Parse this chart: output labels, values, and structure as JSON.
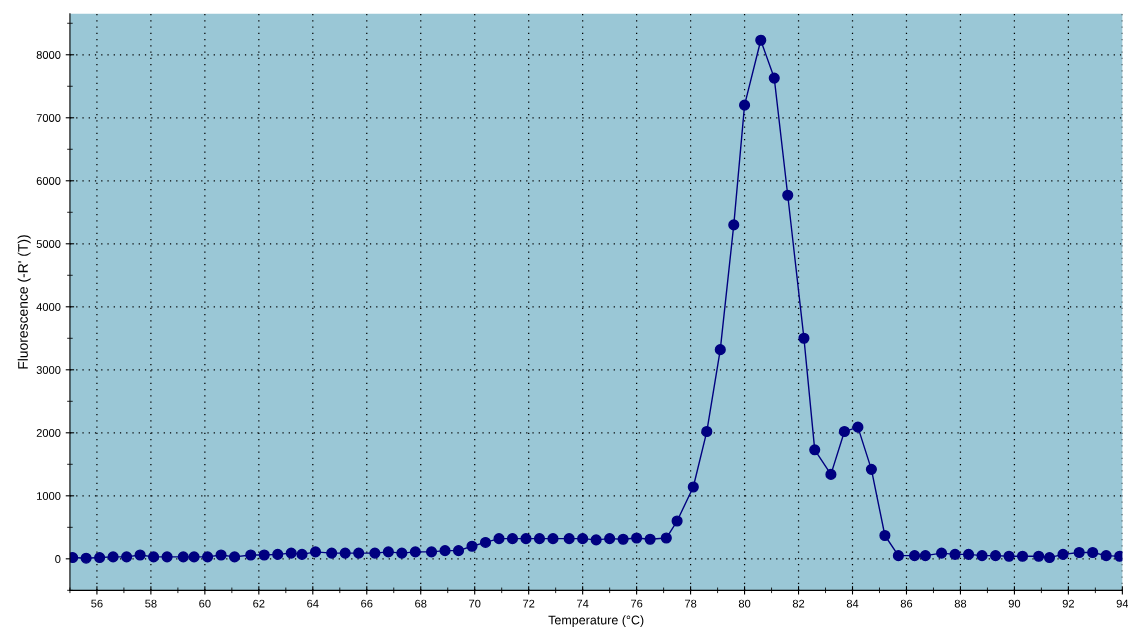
{
  "chart_data": {
    "type": "line",
    "xlabel": "Temperature (°C)",
    "ylabel": "Fluorescence (-R' (T))",
    "x": [
      55.1,
      55.6,
      56.1,
      56.6,
      57.1,
      57.6,
      58.1,
      58.6,
      59.2,
      59.6,
      60.1,
      60.6,
      61.1,
      61.7,
      62.2,
      62.7,
      63.2,
      63.6,
      64.1,
      64.7,
      65.2,
      65.7,
      66.3,
      66.8,
      67.3,
      67.8,
      68.4,
      68.9,
      69.4,
      69.9,
      70.4,
      70.9,
      71.4,
      71.9,
      72.4,
      72.9,
      73.5,
      74.0,
      74.5,
      75.0,
      75.5,
      76.0,
      76.5,
      77.1,
      77.5,
      78.1,
      78.6,
      79.1,
      79.6,
      80.0,
      80.6,
      81.1,
      81.6,
      82.2,
      82.6,
      83.2,
      83.7,
      84.2,
      84.7,
      85.2,
      85.7,
      86.3,
      86.7,
      87.3,
      87.8,
      88.3,
      88.8,
      89.3,
      89.8,
      90.3,
      90.9,
      91.3,
      91.8,
      92.4,
      92.9,
      93.4,
      93.9
    ],
    "series": [
      {
        "color": "#000080",
        "values": [
          20,
          10,
          20,
          30,
          30,
          60,
          30,
          30,
          30,
          30,
          30,
          60,
          30,
          60,
          60,
          70,
          90,
          70,
          110,
          90,
          90,
          90,
          90,
          110,
          90,
          110,
          110,
          130,
          130,
          200,
          260,
          320,
          320,
          320,
          320,
          320,
          320,
          320,
          300,
          320,
          310,
          330,
          310,
          330,
          600,
          1140,
          2020,
          3320,
          5300,
          7200,
          8230,
          7630,
          5770,
          3500,
          1730,
          1340,
          2020,
          2090,
          1420,
          370,
          50,
          50,
          50,
          90,
          70,
          70,
          50,
          50,
          40,
          40,
          40,
          20,
          70,
          100,
          100,
          50,
          40
        ]
      }
    ],
    "xlim": [
      55,
      94
    ],
    "xticks": [
      56,
      58,
      60,
      62,
      64,
      66,
      68,
      70,
      72,
      74,
      76,
      78,
      80,
      82,
      84,
      86,
      88,
      90,
      92,
      94,
      {
        "value": 55,
        "label": null
      },
      {
        "value": 57,
        "label": null
      },
      {
        "value": 59,
        "label": null
      },
      {
        "value": 61,
        "label": null
      },
      {
        "value": 63,
        "label": null
      },
      {
        "value": 65,
        "label": null
      },
      {
        "value": 67,
        "label": null
      },
      {
        "value": 69,
        "label": null
      },
      {
        "value": 71,
        "label": null
      },
      {
        "value": 73,
        "label": null
      },
      {
        "value": 75,
        "label": null
      },
      {
        "value": 77,
        "label": null
      },
      {
        "value": 79,
        "label": null
      },
      {
        "value": 81,
        "label": null
      },
      {
        "value": 83,
        "label": null
      },
      {
        "value": 85,
        "label": null
      },
      {
        "value": 87,
        "label": null
      },
      {
        "value": 89,
        "label": null
      },
      {
        "value": 91,
        "label": null
      },
      {
        "value": 93,
        "label": null
      }
    ],
    "ylim": [
      -500,
      8650
    ],
    "yticks": [
      0,
      1000,
      2000,
      3000,
      4000,
      5000,
      6000,
      7000,
      8000,
      {
        "value": -500,
        "label": null
      },
      {
        "value": 500,
        "label": null
      },
      {
        "value": 1500,
        "label": null
      },
      {
        "value": 2500,
        "label": null
      },
      {
        "value": 3500,
        "label": null
      },
      {
        "value": 4500,
        "label": null
      },
      {
        "value": 5500,
        "label": null
      },
      {
        "value": 6500,
        "label": null
      },
      {
        "value": 7500,
        "label": null
      },
      {
        "value": 8500,
        "label": null
      }
    ],
    "grid": true,
    "marker": "circle",
    "line_style": "solid",
    "legend": false
  }
}
